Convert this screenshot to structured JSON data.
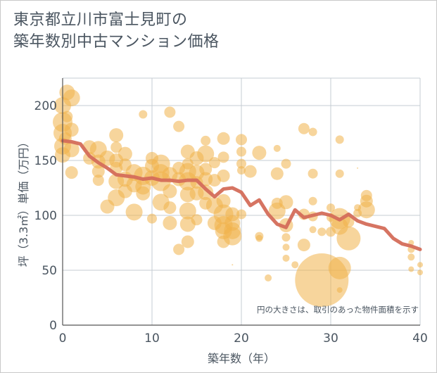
{
  "title": "東京都立川市富士見町の\n築年数別中古マンション価格",
  "chart_data": {
    "type": "scatter",
    "title": "東京都立川市富士見町の築年数別中古マンション価格",
    "xlabel": "築年数（年）",
    "ylabel": "坪（3.3㎡）単価（万円）",
    "xlim": [
      0,
      40
    ],
    "ylim": [
      0,
      225
    ],
    "xticks": [
      0,
      10,
      20,
      30,
      40
    ],
    "yticks": [
      0,
      50,
      100,
      150,
      200
    ],
    "grid": true,
    "annotation": "円の大きさは、取引のあった物件面積を示す",
    "colors": {
      "bubble": "#f0b24a",
      "line": "#d46d5a",
      "axis_text": "#4a5560",
      "grid": "#c5ccd3"
    },
    "series": [
      {
        "type": "line",
        "x": [
          0,
          1,
          2,
          3,
          4,
          5,
          6,
          7,
          8,
          9,
          10,
          11,
          12,
          13,
          14,
          15,
          16,
          17,
          18,
          19,
          20,
          21,
          22,
          23,
          24,
          25,
          26,
          27,
          28,
          29,
          30,
          31,
          32,
          33,
          34,
          35,
          36,
          37,
          38,
          39,
          40
        ],
        "y": [
          168,
          167,
          165,
          154,
          148,
          143,
          137,
          136,
          135,
          133,
          134,
          132,
          132,
          131,
          132,
          132,
          124,
          117,
          124,
          125,
          121,
          109,
          114,
          101,
          92,
          89,
          105,
          98,
          100,
          102,
          100,
          96,
          101,
          95,
          92,
          90,
          88,
          79,
          74,
          72,
          69
        ]
      },
      {
        "type": "bubble",
        "points": [
          [
            0,
            185,
            14
          ],
          [
            0,
            175,
            13
          ],
          [
            0,
            163,
            12
          ],
          [
            0,
            155,
            11
          ],
          [
            0,
            200,
            12
          ],
          [
            0.5,
            212,
            11
          ],
          [
            1,
            207,
            12
          ],
          [
            1,
            178,
            10
          ],
          [
            1,
            160,
            11
          ],
          [
            1,
            139,
            9
          ],
          [
            0.5,
            190,
            8
          ],
          [
            0.3,
            170,
            9
          ],
          [
            3,
            162,
            10
          ],
          [
            3,
            152,
            9
          ],
          [
            4,
            160,
            12
          ],
          [
            4,
            149,
            10
          ],
          [
            4,
            140,
            9
          ],
          [
            4,
            132,
            8
          ],
          [
            5,
            152,
            11
          ],
          [
            6,
            173,
            10
          ],
          [
            6,
            162,
            8
          ],
          [
            6,
            150,
            10
          ],
          [
            6,
            143,
            9
          ],
          [
            6,
            131,
            11
          ],
          [
            6,
            116,
            12
          ],
          [
            5,
            108,
            10
          ],
          [
            7,
            156,
            10
          ],
          [
            7,
            146,
            9
          ],
          [
            7,
            133,
            11
          ],
          [
            7,
            122,
            10
          ],
          [
            8,
            139,
            12
          ],
          [
            8,
            128,
            11
          ],
          [
            8,
            103,
            12
          ],
          [
            9,
            136,
            13
          ],
          [
            9,
            126,
            11
          ],
          [
            9,
            120,
            10
          ],
          [
            9,
            192,
            6
          ],
          [
            10,
            152,
            9
          ],
          [
            10,
            145,
            10
          ],
          [
            10,
            134,
            11
          ],
          [
            10,
            97,
            7
          ],
          [
            11,
            147,
            13
          ],
          [
            11,
            139,
            12
          ],
          [
            11,
            131,
            14
          ],
          [
            11,
            112,
            12
          ],
          [
            12,
            194,
            8
          ],
          [
            12,
            137,
            11
          ],
          [
            12,
            122,
            10
          ],
          [
            12,
            107,
            9
          ],
          [
            12,
            93,
            10
          ],
          [
            13,
            181,
            8
          ],
          [
            13,
            143,
            9
          ],
          [
            13,
            133,
            10
          ],
          [
            13,
            69,
            8
          ],
          [
            14,
            158,
            10
          ],
          [
            14,
            147,
            8
          ],
          [
            14,
            140,
            12
          ],
          [
            14,
            131,
            13
          ],
          [
            14,
            119,
            11
          ],
          [
            14,
            104,
            12
          ],
          [
            14,
            92,
            11
          ],
          [
            14,
            76,
            9
          ],
          [
            15,
            152,
            10
          ],
          [
            15,
            139,
            11
          ],
          [
            15,
            130,
            9
          ],
          [
            15,
            120,
            10
          ],
          [
            15,
            96,
            8
          ],
          [
            16,
            168,
            7
          ],
          [
            16,
            156,
            12
          ],
          [
            16,
            142,
            9
          ],
          [
            16,
            133,
            10
          ],
          [
            16,
            121,
            11
          ],
          [
            16,
            111,
            9
          ],
          [
            17,
            148,
            8
          ],
          [
            17,
            132,
            9
          ],
          [
            17,
            109,
            12
          ],
          [
            17,
            93,
            10
          ],
          [
            18,
            170,
            9
          ],
          [
            18,
            153,
            8
          ],
          [
            18,
            136,
            9
          ],
          [
            18,
            113,
            10
          ],
          [
            18,
            101,
            14
          ],
          [
            18,
            91,
            13
          ],
          [
            18,
            86,
            12
          ],
          [
            18,
            76,
            9
          ],
          [
            19,
            101,
            10
          ],
          [
            19,
            93,
            11
          ],
          [
            19,
            86,
            12
          ],
          [
            19,
            81,
            13
          ],
          [
            19,
            55,
            1
          ],
          [
            20,
            169,
            8
          ],
          [
            20,
            158,
            7
          ],
          [
            20,
            147,
            7
          ],
          [
            20,
            141,
            6
          ],
          [
            20,
            101,
            7
          ],
          [
            21,
            140,
            9
          ],
          [
            22,
            157,
            10
          ],
          [
            22,
            81,
            6
          ],
          [
            22,
            79,
            5
          ],
          [
            23,
            43,
            5
          ],
          [
            24,
            161,
            5
          ],
          [
            24,
            138,
            9
          ],
          [
            24,
            111,
            8
          ],
          [
            24,
            104,
            12
          ],
          [
            25,
            147,
            7
          ],
          [
            25,
            112,
            10
          ],
          [
            25,
            91,
            10
          ],
          [
            25,
            80,
            6
          ],
          [
            25,
            71,
            5
          ],
          [
            25,
            61,
            5
          ],
          [
            26,
            55,
            5
          ],
          [
            27,
            179,
            8
          ],
          [
            27,
            101,
            8
          ],
          [
            27,
            73,
            9
          ],
          [
            28,
            176,
            6
          ],
          [
            28,
            138,
            7
          ],
          [
            28,
            113,
            6
          ],
          [
            28,
            99,
            7
          ],
          [
            28,
            87,
            5
          ],
          [
            29,
            41,
            38
          ],
          [
            29,
            85,
            6
          ],
          [
            30,
            107,
            6
          ],
          [
            30,
            98,
            6
          ],
          [
            30,
            85,
            7
          ],
          [
            31,
            169,
            6
          ],
          [
            31,
            138,
            6
          ],
          [
            31,
            97,
            15
          ],
          [
            31,
            90,
            12
          ],
          [
            31,
            52,
            16
          ],
          [
            31,
            32,
            4
          ],
          [
            32,
            94,
            8
          ],
          [
            32,
            79,
            17
          ],
          [
            33,
            107,
            5
          ],
          [
            33,
            102,
            6
          ],
          [
            33,
            143,
            1
          ],
          [
            34,
            118,
            8
          ],
          [
            34,
            113,
            9
          ],
          [
            34,
            105,
            12
          ],
          [
            39,
            75,
            4
          ],
          [
            39,
            69,
            5
          ],
          [
            39,
            62,
            5
          ],
          [
            39,
            51,
            4
          ],
          [
            40,
            55,
            4
          ],
          [
            40,
            48,
            4
          ]
        ]
      }
    ]
  }
}
